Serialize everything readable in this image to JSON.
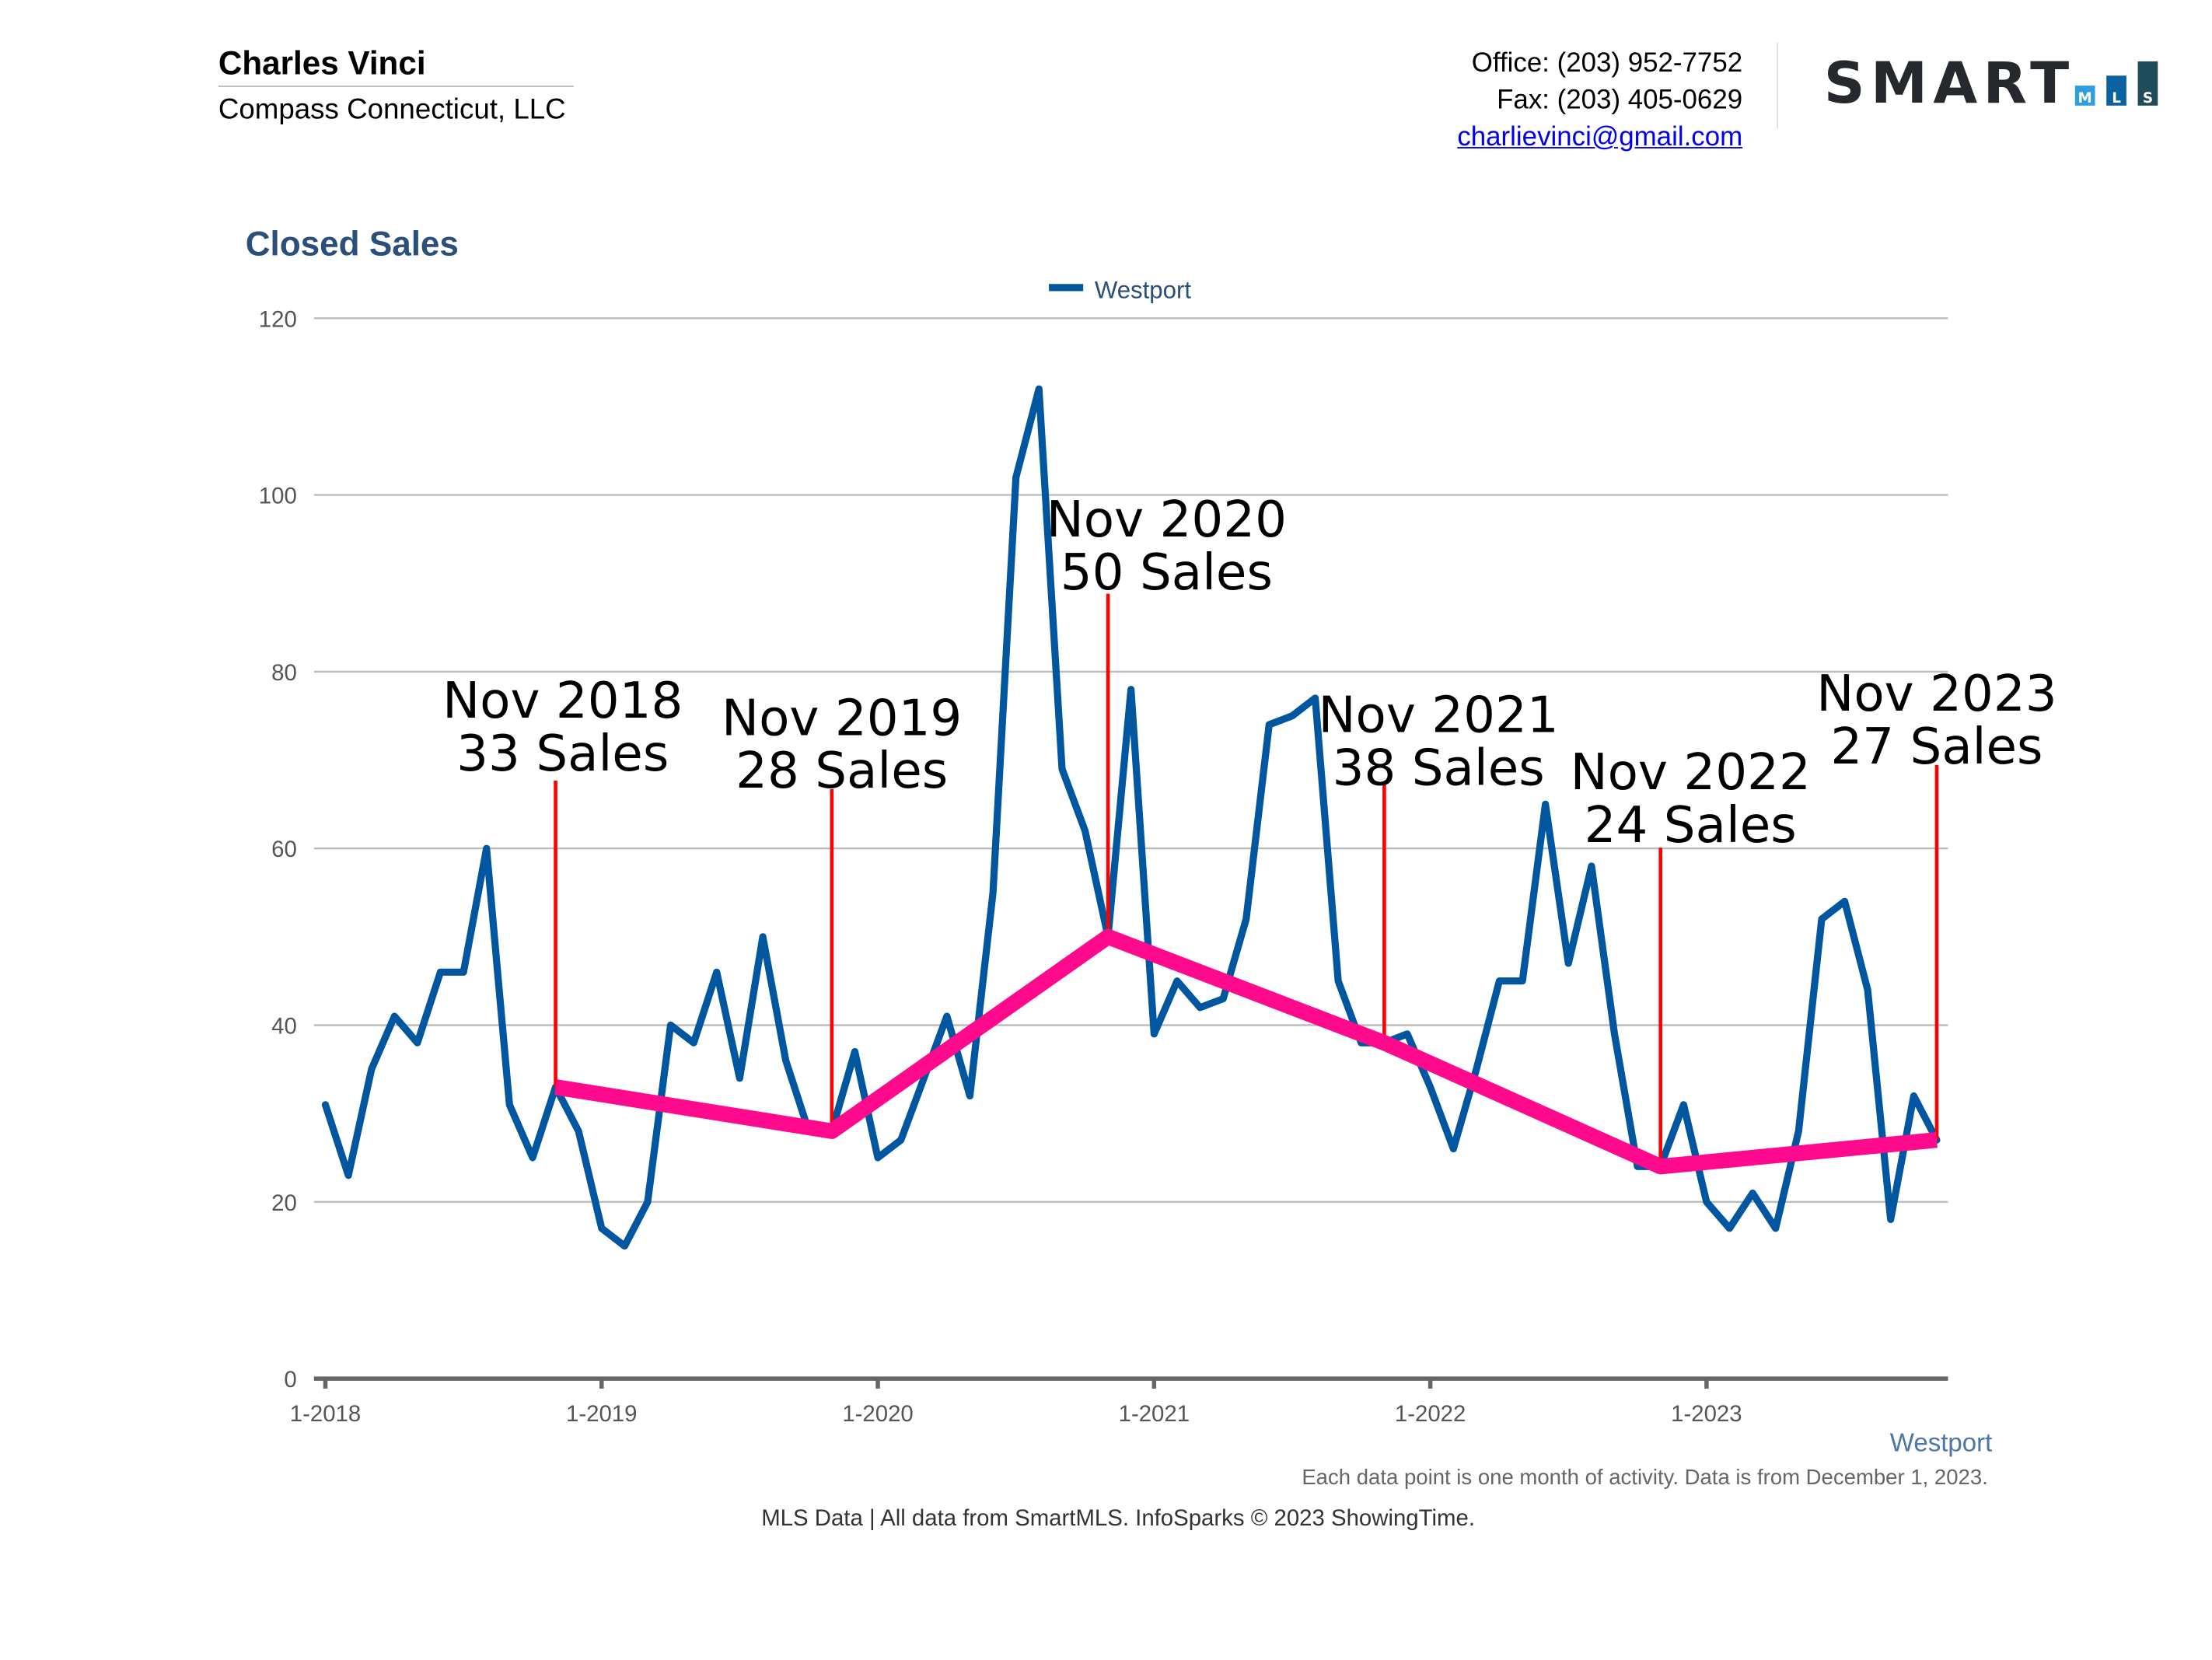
{
  "header": {
    "agent_name": "Charles Vinci",
    "company": "Compass Connecticut, LLC",
    "office": "Office: (203) 952-7752",
    "fax": "Fax: (203) 405-0629",
    "email": "charlievinci@gmail.com",
    "logo_text": "SMART MLS"
  },
  "chart_data": {
    "type": "line",
    "title": "Closed Sales",
    "legend": {
      "position": "top-center",
      "entries": [
        "Westport"
      ]
    },
    "ylim": [
      0,
      120
    ],
    "yticks": [
      0,
      20,
      40,
      60,
      80,
      100,
      120
    ],
    "xtick_labels": [
      "1-2018",
      "1-2019",
      "1-2020",
      "1-2021",
      "1-2022",
      "1-2023"
    ],
    "grid": true,
    "series": [
      {
        "name": "Westport",
        "color": "#0057a0",
        "start": "2018-01",
        "values": [
          31,
          23,
          35,
          41,
          38,
          46,
          46,
          60,
          31,
          25,
          33,
          28,
          17,
          15,
          20,
          40,
          38,
          46,
          34,
          50,
          36,
          28,
          28,
          37,
          25,
          27,
          34,
          41,
          32,
          55,
          102,
          112,
          69,
          62,
          50,
          78,
          39,
          45,
          42,
          43,
          52,
          74,
          75,
          77,
          45,
          38,
          38,
          39,
          33,
          26,
          35,
          45,
          45,
          65,
          47,
          58,
          39,
          24,
          24,
          31,
          20,
          17,
          21,
          17,
          28,
          52,
          54,
          44,
          18,
          32,
          27
        ]
      }
    ],
    "annotations": [
      {
        "month": "2018-11",
        "line1": "Nov 2018",
        "line2": "33 Sales",
        "value": 33
      },
      {
        "month": "2019-11",
        "line1": "Nov 2019",
        "line2": "28 Sales",
        "value": 28
      },
      {
        "month": "2020-11",
        "line1": "Nov 2020",
        "line2": "50 Sales",
        "value": 50
      },
      {
        "month": "2021-11",
        "line1": "Nov 2021",
        "line2": "38 Sales",
        "value": 38
      },
      {
        "month": "2022-11",
        "line1": "Nov 2022",
        "line2": "24 Sales",
        "value": 24
      },
      {
        "month": "2023-11",
        "line1": "Nov 2023",
        "line2": "27 Sales",
        "value": 27
      }
    ],
    "trend_color": "#ff0a8c",
    "marker_color": "#ff0000",
    "series_label": "Westport"
  },
  "footer": {
    "note": "Each data point is one month of activity. Data is from December 1, 2023.",
    "source": "MLS Data | All data from SmartMLS. InfoSparks © 2023 ShowingTime."
  }
}
